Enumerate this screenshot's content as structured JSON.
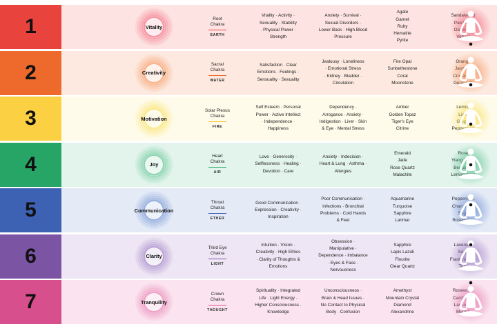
{
  "rows": [
    {
      "number": "1",
      "quality": "Vitality",
      "chakra": "Root\nChakra",
      "element": "EARTH",
      "traits": "Vitality · Activity ·\nSexuality · Stability\n· Physical Power ·\nStrength",
      "issues": "Anxiety · Survival ·\nSexual Disorders ·\nLower Back · High Blood\nPressure",
      "stones": "Agate\nGarnet\nRuby\nHematite\nPyrite",
      "oils": "Sandalwood\nPatchouli\nOakmoss\nVetiver",
      "colors": {
        "bar": "#e9433d",
        "bg": "#fde3e1",
        "glow": "#f2657a",
        "line": "#e9433d"
      }
    },
    {
      "number": "2",
      "quality": "Creativity",
      "chakra": "Sacral\nChakra",
      "element": "WATER",
      "traits": "Satisfaction · Clear\nEmotions · Feelings ·\nSensuality · Sexuality",
      "issues": "Jealousy · Loneliness\n· Emotional Stress\n· Kidney · Bladder ·\nCirculation",
      "stones": "Fire Opal\nSunbethestone\nCoral\nMoonstone",
      "oils": "Orange\nJasmine\nCinnamon\nGeranium",
      "colors": {
        "bar": "#ee6a2c",
        "bg": "#fde9df",
        "glow": "#f4925a",
        "line": "#ee6a2c"
      }
    },
    {
      "number": "3",
      "quality": "Motivation",
      "chakra": "Solar Plexus\nChakra",
      "element": "FIRE",
      "traits": "Self Esteem · Personal\nPower · Active Intellect\n· Independence ·\nHappiness",
      "issues": "Dependency ·\nArrogance · Anxiety ·\nIndigestion · Liver · Skin\n& Eye · Mental Stress",
      "stones": "Amber\nGolden Topaz\nTiger's Eye\nCitrine",
      "oils": "Lemon\nLime\nGinger\nPeppermint",
      "colors": {
        "bar": "#fbd043",
        "bg": "#fffbea",
        "glow": "#f7de56",
        "line": "#f2c21c"
      }
    },
    {
      "number": "4",
      "quality": "Joy",
      "chakra": "Heart\nChakra",
      "element": "AIR",
      "traits": "Love · Generosity ·\nSelflessness · Healing ·\nDevotion · Care",
      "issues": "Anxiety · Indecision ·\nHeart & Lung · Asthma ·\nAllergies",
      "stones": "Emerald\nJade\nRose Quartz\nMalachite",
      "oils": "Rose\nYlang Ylang\nBergamot\nLemongrass",
      "colors": {
        "bar": "#26a567",
        "bg": "#e2f4ec",
        "glow": "#5cc28f",
        "line": "#26a567"
      }
    },
    {
      "number": "5",
      "quality": "Communication",
      "chakra": "Throat\nChakra",
      "element": "ETHER",
      "traits": "Good Communication ·\nExpression · Creativity ·\nInspiration",
      "issues": "Poor Communication ·\nInfections · Bronchial\nProblems · Cold Hands\n& Feet",
      "stones": "Aquamarine\nTurquoise\nSapphire\nLarimar",
      "oils": "Peppermint\nChamomile\nSage\nRosemarry",
      "colors": {
        "bar": "#3d62b4",
        "bg": "#e4ebf7",
        "glow": "#6e8ed0",
        "line": "#3d62b4"
      }
    },
    {
      "number": "6",
      "quality": "Clarity",
      "chakra": "Third Eye\nChakra",
      "element": "LIGHT",
      "traits": "Intuition · Vision ·\nCreativity · High Ethics\n· Clarity of Thoughts &\nEmotions",
      "issues": "Obsession ·\nManipulative ·\nDependence · Imbalance\n· Eyes & Face ·\nNervousness",
      "stones": "Sapphire\nLapis Lazuli\nFlourite\nClear Quartz",
      "oils": "Lavender\nSage\nFrankincense\nTulsi",
      "colors": {
        "bar": "#7b54a4",
        "bg": "#eee6f4",
        "glow": "#9c7cc2",
        "line": "#7b54a4"
      }
    },
    {
      "number": "7",
      "quality": "Tranquility",
      "chakra": "Crown\nChakra",
      "element": "THOUGHT",
      "traits": "Spirituality · Integrated\nLife · Light Energy ·\nHigher Consciousness ·\nKnowledge",
      "issues": "Unconsciousness ·\nBrain & Head Issues ·\nNo Contact to Physical\nBody · Confusion",
      "stones": "Amethyst\nMountain Crystal\nDiamond\nAlexandrine",
      "oils": "Rosewood\nCardamon\nLavender\nMyrrhh",
      "colors": {
        "bar": "#d84f8e",
        "bg": "#fbe4ef",
        "glow": "#e67ab0",
        "line": "#d84f8e"
      }
    }
  ],
  "icons": {
    "circle": "radiating-circle-icon",
    "figure": "meditating-figure-icon"
  }
}
